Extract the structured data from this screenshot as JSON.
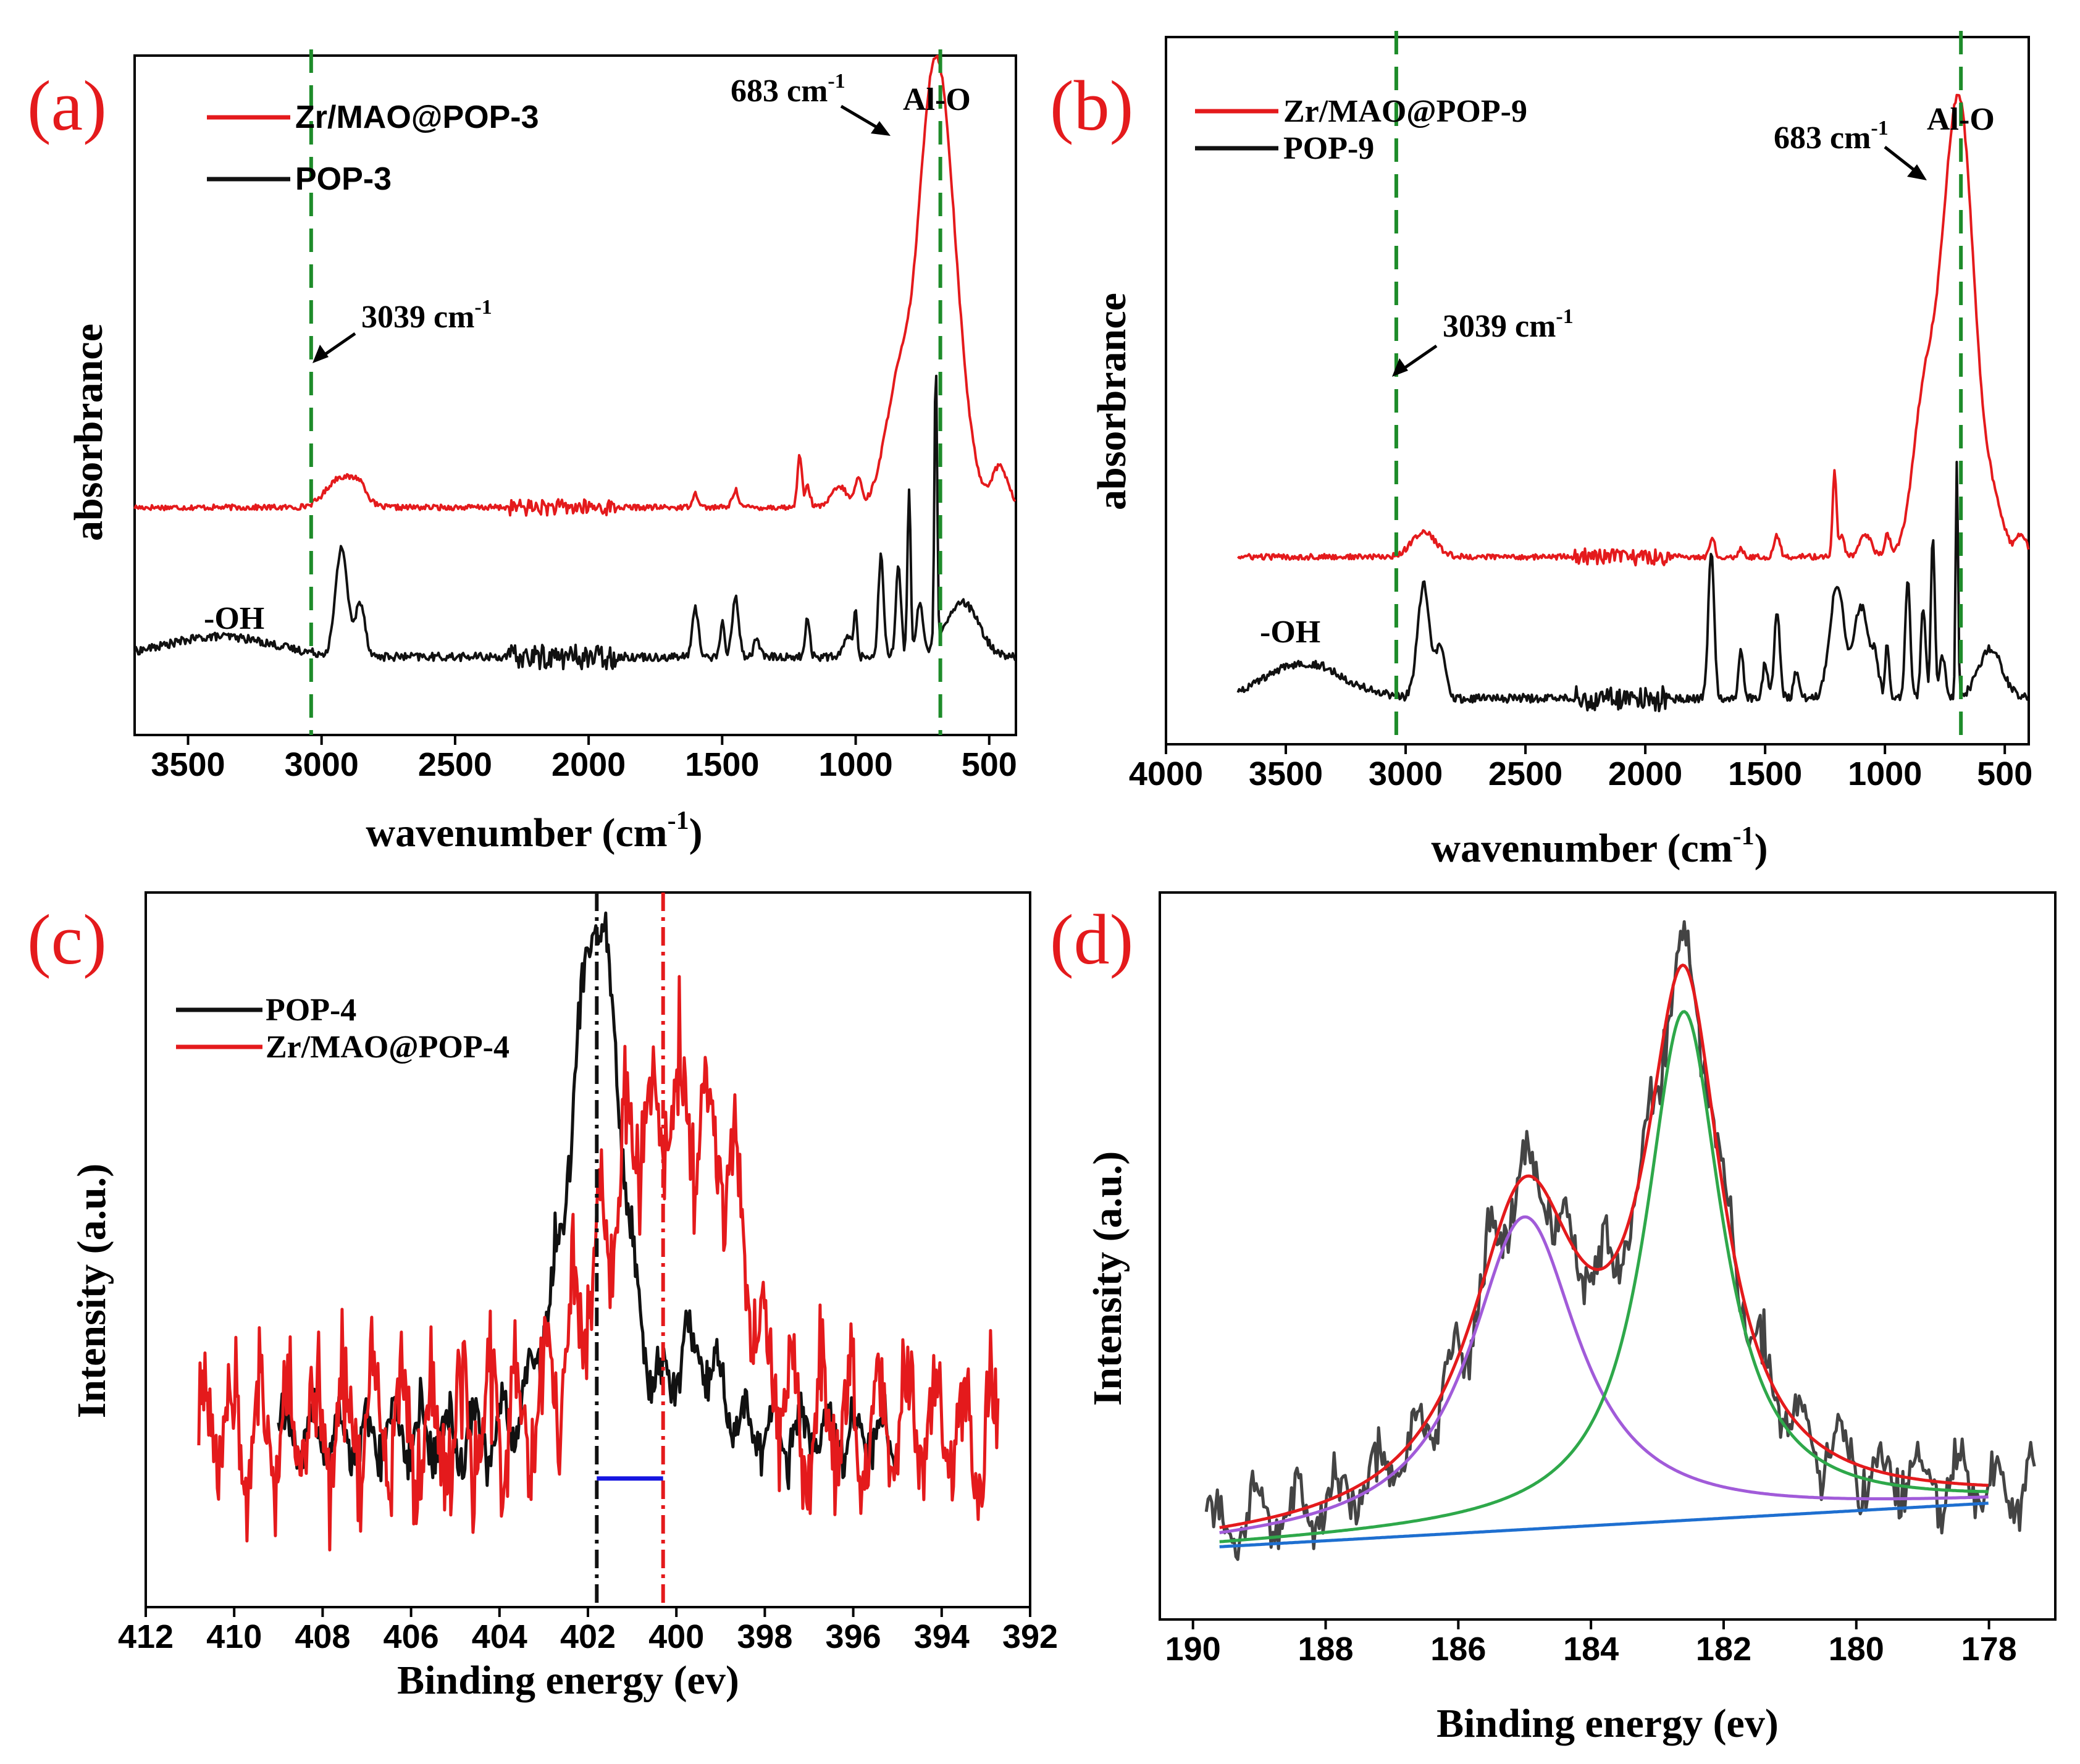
{
  "colors": {
    "red": "#e41a1c",
    "black": "#111111",
    "green": "#1e8c2a",
    "purple": "#a15bd9",
    "fit_green": "#2ea84a",
    "blue": "#1e6fd0",
    "gray": "#444444",
    "marker_blue": "#1515e0"
  },
  "chart_data": [
    {
      "id": "a",
      "panel_label": "(a)",
      "type": "line",
      "xlabel": "wavenumber (cm-1)",
      "xlabel_main": "wavenumber (cm",
      "xlabel_sup": "-1",
      "xlabel_close": ")",
      "ylabel": "absorbrance",
      "xlim": [
        3700,
        400
      ],
      "ylim": [
        0,
        1
      ],
      "xticks": [
        3500,
        3000,
        2500,
        2000,
        1500,
        1000,
        500
      ],
      "xtick_labels": [
        "3500",
        "3000",
        "2500",
        "2000",
        "1500",
        "1000",
        "500"
      ],
      "legend": [
        "Zr/MAO@POP-3",
        "POP-3"
      ],
      "reference_lines": [
        3039,
        683
      ],
      "annotations": [
        {
          "text": "683 cm",
          "sup": "-1"
        },
        {
          "text": "Al-O"
        },
        {
          "text": "3039 cm",
          "sup": "-1"
        },
        {
          "text": "-OH"
        }
      ],
      "series": [
        {
          "name": "Zr/MAO@POP-3",
          "color": "red",
          "baseline": 0.335,
          "noise": 0.004,
          "peaks": [
            [
              2925,
              0.045,
              55
            ],
            [
              2855,
              0.02,
              25
            ],
            [
              1600,
              0.02,
              12
            ],
            [
              1450,
              0.025,
              12
            ],
            [
              1210,
              0.08,
              8
            ],
            [
              1180,
              0.03,
              10
            ],
            [
              1060,
              0.03,
              30
            ],
            [
              990,
              0.04,
              12
            ],
            [
              830,
              0.2,
              55
            ],
            [
              683,
              0.56,
              55
            ],
            [
              740,
              0.18,
              40
            ],
            [
              600,
              0.07,
              50
            ],
            [
              460,
              0.06,
              30
            ]
          ]
        },
        {
          "name": "POP-3",
          "color": "black",
          "baseline": 0.115,
          "noise": 0.006,
          "peaks": [
            [
              3380,
              0.03,
              200
            ],
            [
              2925,
              0.16,
              22
            ],
            [
              2855,
              0.08,
              18
            ],
            [
              1600,
              0.07,
              12
            ],
            [
              1500,
              0.05,
              8
            ],
            [
              1450,
              0.09,
              12
            ],
            [
              1370,
              0.03,
              10
            ],
            [
              1180,
              0.06,
              8
            ],
            [
              1030,
              0.03,
              15
            ],
            [
              1000,
              0.07,
              6
            ],
            [
              905,
              0.15,
              10
            ],
            [
              840,
              0.13,
              10
            ],
            [
              800,
              0.25,
              6
            ],
            [
              760,
              0.08,
              12
            ],
            [
              700,
              0.42,
              5
            ],
            [
              600,
              0.08,
              60
            ]
          ]
        }
      ]
    },
    {
      "id": "b",
      "panel_label": "(b)",
      "type": "line",
      "xlabel": "wavenumber (cm-1)",
      "xlabel_main": "wavenumber (cm",
      "xlabel_sup": "-1",
      "xlabel_close": ")",
      "ylabel": "absorbrance",
      "xlim": [
        4000,
        400
      ],
      "ylim": [
        0,
        1
      ],
      "xticks": [
        4000,
        3500,
        3000,
        2500,
        2000,
        1500,
        1000,
        500
      ],
      "xtick_labels": [
        "4000",
        "3500",
        "3000",
        "2500",
        "2000",
        "1500",
        "1000",
        "500"
      ],
      "legend": [
        "Zr/MAO@POP-9",
        "POP-9"
      ],
      "reference_lines": [
        3039,
        683
      ],
      "annotations": [
        {
          "text": "683 cm",
          "sup": "-1"
        },
        {
          "text": "Al-O"
        },
        {
          "text": "3039 cm",
          "sup": "-1"
        },
        {
          "text": "-OH"
        }
      ],
      "series": [
        {
          "name": "Zr/MAO@POP-9",
          "color": "red",
          "baseline": 0.265,
          "noise": 0.004,
          "peaks": [
            [
              2925,
              0.035,
              50
            ],
            [
              1720,
              0.03,
              10
            ],
            [
              1600,
              0.012,
              10
            ],
            [
              1450,
              0.03,
              12
            ],
            [
              1210,
              0.12,
              8
            ],
            [
              1180,
              0.03,
              10
            ],
            [
              1080,
              0.03,
              25
            ],
            [
              990,
              0.03,
              12
            ],
            [
              830,
              0.24,
              50
            ],
            [
              683,
              0.6,
              55
            ],
            [
              750,
              0.15,
              40
            ],
            [
              560,
              0.08,
              50
            ],
            [
              430,
              0.03,
              20
            ]
          ]
        },
        {
          "name": "POP-9",
          "color": "black",
          "baseline": 0.065,
          "noise": 0.006,
          "peaks": [
            [
              3420,
              0.05,
              160
            ],
            [
              2925,
              0.16,
              25
            ],
            [
              2855,
              0.07,
              20
            ],
            [
              1725,
              0.21,
              12
            ],
            [
              1600,
              0.07,
              10
            ],
            [
              1500,
              0.05,
              10
            ],
            [
              1450,
              0.12,
              12
            ],
            [
              1370,
              0.04,
              10
            ],
            [
              1200,
              0.16,
              30
            ],
            [
              1100,
              0.13,
              30
            ],
            [
              1040,
              0.05,
              15
            ],
            [
              990,
              0.08,
              8
            ],
            [
              905,
              0.17,
              10
            ],
            [
              840,
              0.13,
              10
            ],
            [
              800,
              0.23,
              8
            ],
            [
              760,
              0.06,
              12
            ],
            [
              700,
              0.34,
              5
            ],
            [
              560,
              0.07,
              50
            ]
          ]
        }
      ]
    },
    {
      "id": "c",
      "panel_label": "(c)",
      "type": "line",
      "xlabel": "Binding energy (ev)",
      "ylabel": "Intensity (a.u.)",
      "xlim": [
        412,
        392
      ],
      "ylim": [
        0,
        1
      ],
      "xticks": [
        412,
        410,
        408,
        406,
        404,
        402,
        400,
        398,
        396,
        394,
        392
      ],
      "xtick_labels": [
        "412",
        "410",
        "408",
        "406",
        "404",
        "402",
        "400",
        "398",
        "396",
        "394",
        "392"
      ],
      "legend": [
        "POP-4",
        "Zr/MAO@POP-4"
      ],
      "reference_lines": [
        401.8,
        400.3
      ],
      "shift_marker": [
        401.8,
        400.3
      ],
      "series": [
        {
          "name": "POP-4",
          "color": "black",
          "range": [
            409,
            395
          ],
          "baseline": 0.24,
          "noise": 0.06,
          "peaks": [
            [
              401.8,
              0.72,
              0.55
            ],
            [
              399.6,
              0.12,
              0.6
            ],
            [
              403.0,
              0.08,
              0.4
            ]
          ]
        },
        {
          "name": "Zr/MAO@POP-4",
          "color": "red",
          "range": [
            410.8,
            392.7
          ],
          "baseline": 0.25,
          "noise": 0.14,
          "peaks": [
            [
              400.6,
              0.42,
              1.1
            ],
            [
              399.0,
              0.25,
              0.7
            ]
          ]
        }
      ]
    },
    {
      "id": "d",
      "panel_label": "(d)",
      "type": "line",
      "xlabel": "Binding energy (ev)",
      "ylabel": "Intensity (a.u.)",
      "xlim": [
        190.5,
        177
      ],
      "ylim": [
        0,
        1
      ],
      "xticks": [
        190,
        188,
        186,
        184,
        182,
        180,
        178
      ],
      "xtick_labels": [
        "190",
        "188",
        "186",
        "184",
        "182",
        "180",
        "178"
      ],
      "components": [
        {
          "name": "raw",
          "color": "gray",
          "range": [
            189.8,
            177.3
          ],
          "noise": 0.06
        },
        {
          "name": "fit envelope",
          "color": "red",
          "range": [
            189.6,
            178
          ]
        },
        {
          "name": "component 1",
          "color": "purple",
          "center": 185.0,
          "height": 0.43,
          "width": 1.0,
          "range": [
            189.6,
            178
          ]
        },
        {
          "name": "component 2",
          "color": "fit_green",
          "center": 182.6,
          "height": 0.7,
          "width": 0.7,
          "range": [
            189.6,
            178
          ]
        },
        {
          "name": "background",
          "color": "blue",
          "range": [
            189.6,
            178
          ],
          "start": 0.1,
          "end": 0.16
        }
      ]
    }
  ]
}
